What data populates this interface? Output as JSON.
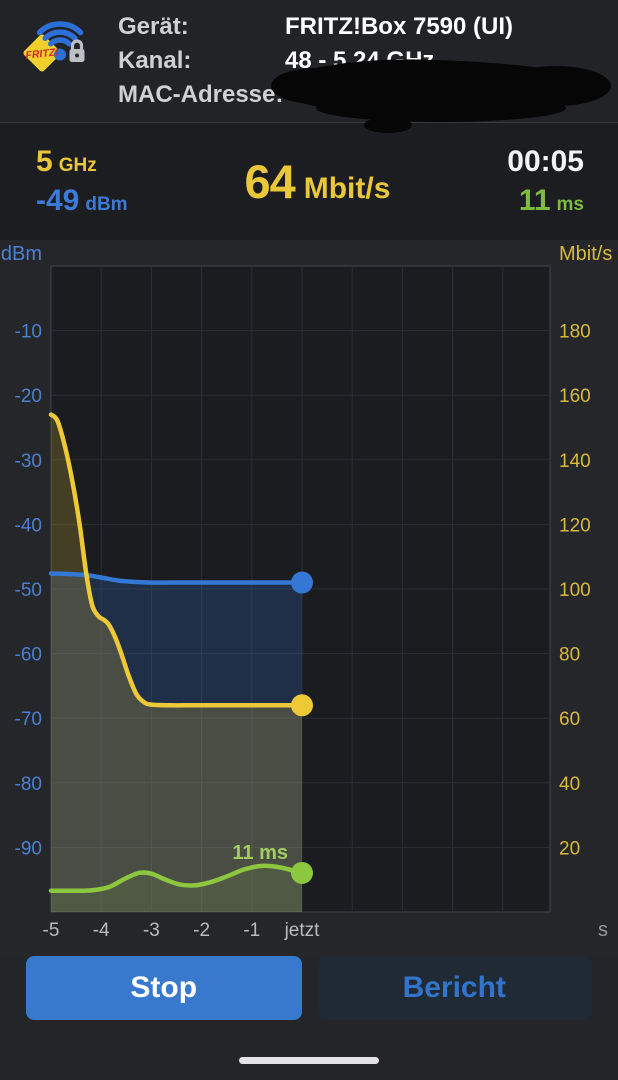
{
  "header": {
    "logo": {
      "icon": "fritz-wlan-logo",
      "fritz_text": "FRITZ!"
    },
    "rows": [
      {
        "label": "Gerät:",
        "value": "FRITZ!Box 7590 (UI)"
      },
      {
        "label": "Kanal:",
        "value": "48 - 5,24 GHz"
      },
      {
        "label": "MAC-Adresse:",
        "value": "",
        "value_hidden": true
      }
    ]
  },
  "stats": {
    "band": {
      "value": "5",
      "unit": "GHz"
    },
    "signal": {
      "value": "-49",
      "unit": "dBm"
    },
    "throughput": {
      "value": "64",
      "unit": "Mbit/s"
    },
    "time": "00:05",
    "ping": {
      "value": "11",
      "unit": "ms"
    }
  },
  "chart_data": {
    "type": "line",
    "x_axis": {
      "tick_labels": [
        "-5",
        "-4",
        "-3",
        "-2",
        "-1",
        "jetzt"
      ],
      "tick_seconds": [
        -5,
        -4,
        -3,
        -2,
        -1,
        0
      ],
      "unit": "s",
      "range_seconds": [
        -5,
        4.9
      ],
      "grid": true
    },
    "left_axis": {
      "title": "dBm",
      "ticks": [
        -10,
        -20,
        -30,
        -40,
        -50,
        -60,
        -70,
        -80,
        -90
      ],
      "range": [
        0,
        -100
      ]
    },
    "right_axis": {
      "title": "Mbit/s",
      "ticks": [
        180,
        160,
        140,
        120,
        100,
        80,
        60,
        40,
        20
      ],
      "range": [
        200,
        0
      ]
    },
    "series": [
      {
        "name": "signal",
        "axis": "left",
        "unit": "dBm",
        "current": -49,
        "color": "#3577d4",
        "fill": "rgba(53,119,212,0.22)",
        "points": [
          [
            -5,
            -47.6
          ],
          [
            -4.6,
            -47.7
          ],
          [
            -4.25,
            -47.9
          ],
          [
            -3.95,
            -48.3
          ],
          [
            -3.65,
            -48.7
          ],
          [
            -3.35,
            -48.9
          ],
          [
            -3.05,
            -49
          ],
          [
            -2.6,
            -49
          ],
          [
            -2.1,
            -49
          ],
          [
            -1.6,
            -49
          ],
          [
            -1.1,
            -49
          ],
          [
            -0.6,
            -49
          ],
          [
            0,
            -49
          ]
        ]
      },
      {
        "name": "throughput",
        "axis": "right",
        "unit": "Mbit/s",
        "current": 64,
        "color": "#eec937",
        "fill": "rgba(238,201,55,0.20)",
        "points": [
          [
            -5,
            154
          ],
          [
            -4.87,
            152
          ],
          [
            -4.72,
            144
          ],
          [
            -4.57,
            133
          ],
          [
            -4.43,
            120
          ],
          [
            -4.3,
            105
          ],
          [
            -4.18,
            95
          ],
          [
            -4.05,
            91.5
          ],
          [
            -3.95,
            90.5
          ],
          [
            -3.85,
            89
          ],
          [
            -3.72,
            85
          ],
          [
            -3.6,
            80
          ],
          [
            -3.45,
            73
          ],
          [
            -3.3,
            67.5
          ],
          [
            -3.15,
            65
          ],
          [
            -3,
            64.2
          ],
          [
            -2.6,
            64
          ],
          [
            -2.2,
            64
          ],
          [
            -1.8,
            64
          ],
          [
            -1.4,
            64
          ],
          [
            -1,
            64
          ],
          [
            -0.5,
            64
          ],
          [
            0,
            64
          ]
        ]
      },
      {
        "name": "ping",
        "axis": "ping",
        "unit": "ms",
        "current": 11,
        "color": "#8dc63f",
        "fill": "rgba(141,198,63,0.10)",
        "end_label": "11 ms",
        "points": [
          [
            -5,
            6
          ],
          [
            -4.6,
            6
          ],
          [
            -4.2,
            6.1
          ],
          [
            -3.85,
            7
          ],
          [
            -3.55,
            9.2
          ],
          [
            -3.25,
            11
          ],
          [
            -3,
            10.8
          ],
          [
            -2.75,
            9.3
          ],
          [
            -2.45,
            7.8
          ],
          [
            -2.15,
            7.5
          ],
          [
            -1.85,
            8.3
          ],
          [
            -1.5,
            10
          ],
          [
            -1.15,
            12
          ],
          [
            -0.8,
            13
          ],
          [
            -0.45,
            12.6
          ],
          [
            0,
            11
          ]
        ]
      }
    ],
    "legend_position": "none"
  },
  "footer": {
    "stop_label": "Stop",
    "report_label": "Bericht"
  },
  "colors": {
    "accent_yellow": "#eac63a",
    "accent_blue": "#3c7ad6",
    "accent_green": "#7eba3e",
    "stop_button": "#3878cd",
    "report_text": "#3273cc",
    "plot_background": "#1a1c20",
    "grid_line": "#2b2e33"
  }
}
